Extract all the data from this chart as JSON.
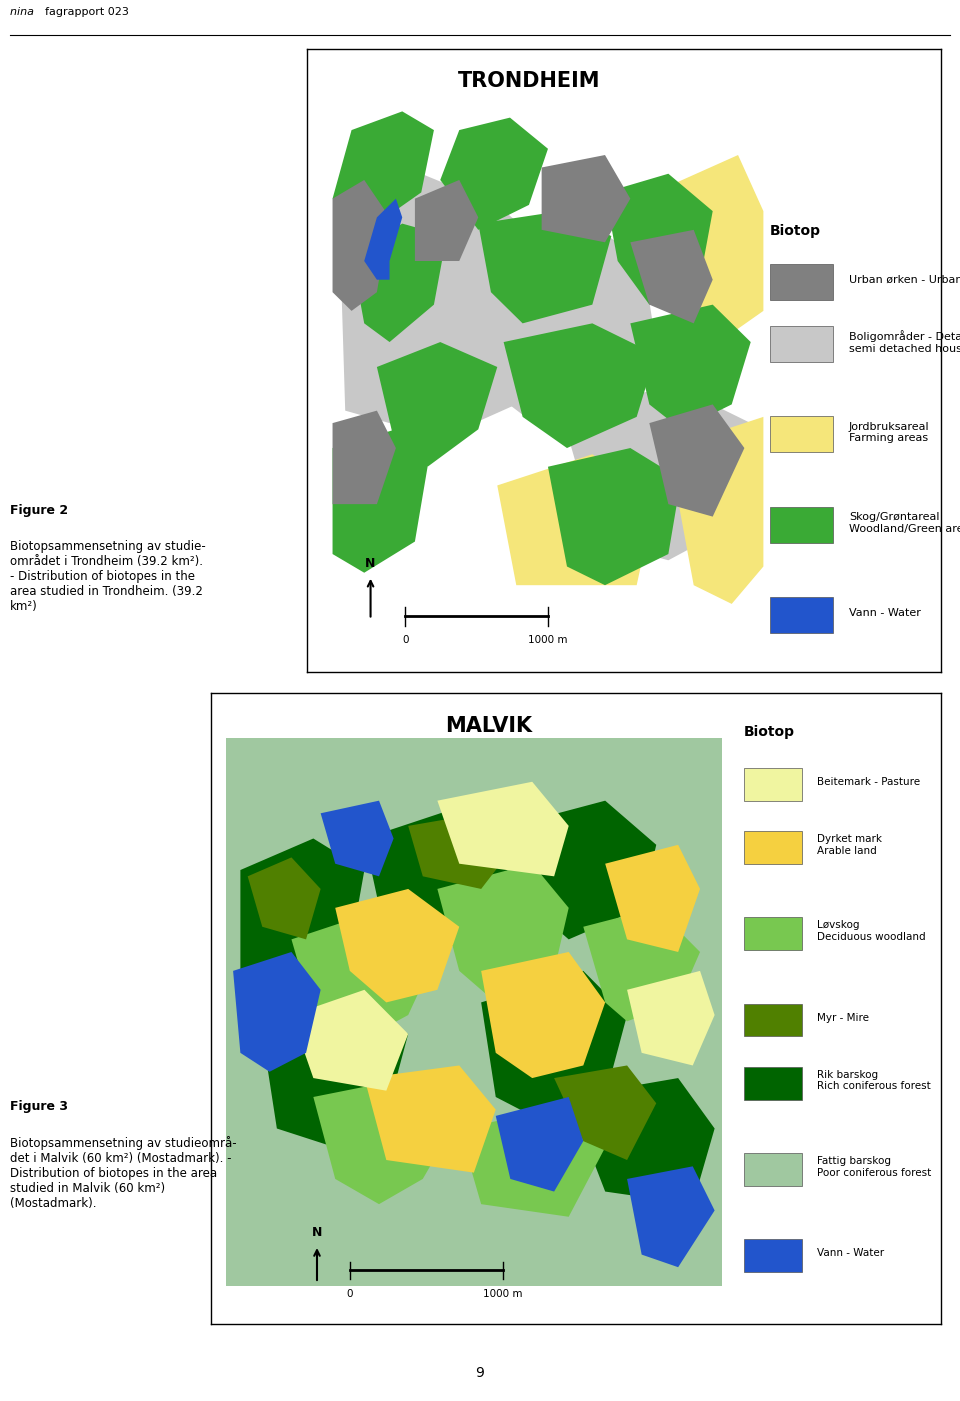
{
  "header_text": "nina fagrapport 023",
  "page_number": "9",
  "trondheim_title": "TRONDHEIM",
  "trondheim_legend_title": "Biotop",
  "trondheim_legend": [
    {
      "color": "#808080",
      "label": "Urban ørken - Urban desert"
    },
    {
      "color": "#c8c8c8",
      "label": "Boligområder - Detached/\nsemi detached houses"
    },
    {
      "color": "#f5e67a",
      "label": "Jordbruksareal\nFarming areas"
    },
    {
      "color": "#3aaa35",
      "label": "Skog/Grøntareal\nWoodland/Green areas"
    },
    {
      "color": "#2255cc",
      "label": "Vann - Water"
    }
  ],
  "fig2_label": "Figure 2",
  "fig2_text": "Biotopsammensetning av studie-\nområdet i Trondheim (39.2 km²).\n- Distribution of biotopes in the\narea studied in Trondheim. (39.2\nkm²)",
  "malvik_title": "MALVIK",
  "malvik_legend_title": "Biotop",
  "malvik_legend": [
    {
      "color": "#f0f5a0",
      "label": "Beitemark - Pasture"
    },
    {
      "color": "#f5d040",
      "label": "Dyrket mark\nArable land"
    },
    {
      "color": "#78c850",
      "label": "Løvskog\nDeciduous woodland"
    },
    {
      "color": "#508000",
      "label": "Myr - Mire"
    },
    {
      "color": "#006400",
      "label": "Rik barskog\nRich coniferous forest"
    },
    {
      "color": "#a0c8a0",
      "label": "Fattig barskog\nPoor coniferous forest"
    },
    {
      "color": "#2255cc",
      "label": "Vann - Water"
    }
  ],
  "fig3_label": "Figure 3",
  "fig3_text": "Biotopsammensetning av studieområ-\ndet i Malvik (60 km²) (Mostadmark). -\nDistribution of biotopes in the area\nstudied in Malvik (60 km²)\n(Mostadmark).",
  "trondheim_map_colors": {
    "background": "#ffffff",
    "urban_desert": "#808080",
    "residential": "#c8c8c8",
    "farming": "#f5e67a",
    "woodland": "#3aaa35",
    "water": "#2255cc"
  },
  "malvik_map_colors": {
    "background": "#a0c8a0",
    "pasture": "#f0f5a0",
    "arable": "#f5d040",
    "deciduous": "#78c850",
    "mire": "#508000",
    "rich_conifer": "#006400",
    "poor_conifer": "#a0c8a0",
    "water": "#2255cc"
  }
}
